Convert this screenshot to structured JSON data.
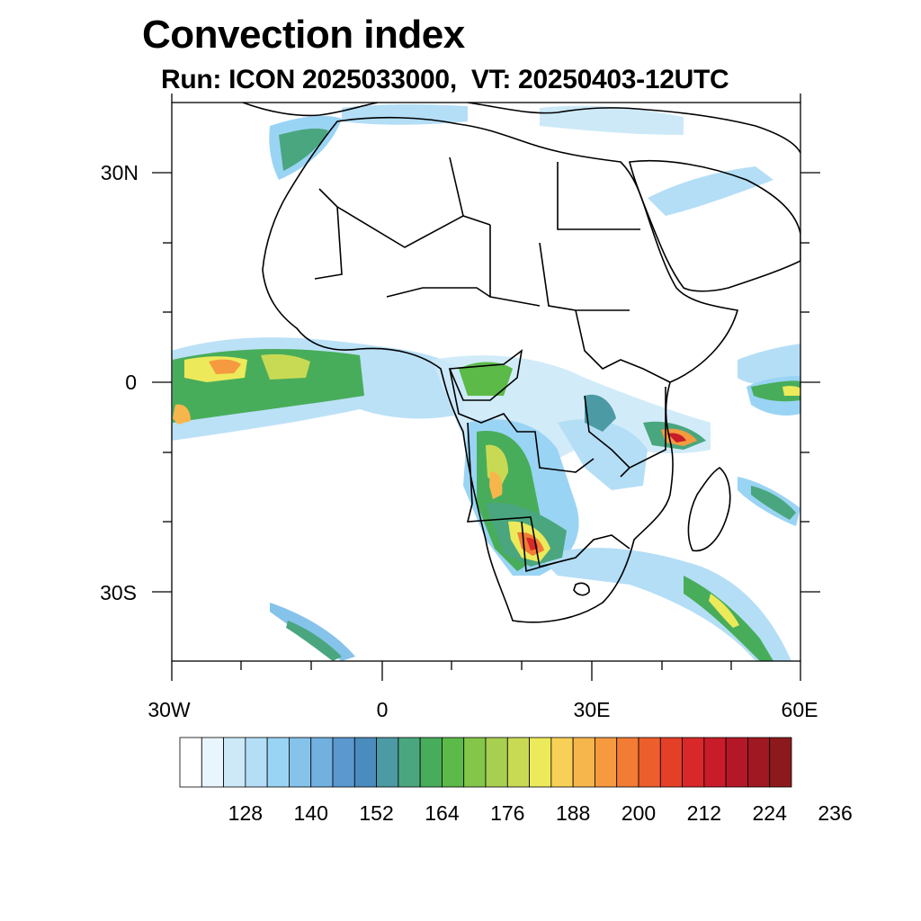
{
  "title": "Convection index",
  "subtitle": "Run: ICON 2025033000,  VT: 20250403-12UTC",
  "map": {
    "region": "Africa",
    "lon_range": [
      -30,
      60
    ],
    "lat_range": [
      -40,
      40
    ],
    "lon_ticks": [
      {
        "value": -30,
        "label": "30W"
      },
      {
        "value": 0,
        "label": "0"
      },
      {
        "value": 30,
        "label": "30E"
      },
      {
        "value": 60,
        "label": "60E"
      }
    ],
    "lat_ticks": [
      {
        "value": 30,
        "label": "30N"
      },
      {
        "value": 0,
        "label": "0"
      },
      {
        "value": -30,
        "label": "30S"
      }
    ]
  },
  "colorbar": {
    "colors": [
      "#ffffff",
      "#e8f5fc",
      "#cde9f8",
      "#b4def6",
      "#9ad4f4",
      "#86c3ea",
      "#72b0e0",
      "#5b98d0",
      "#4a8cbd",
      "#4c9aa4",
      "#4aa67e",
      "#48ad5a",
      "#5cba48",
      "#84c64a",
      "#a8d050",
      "#c8da54",
      "#ecea5a",
      "#f8d058",
      "#f6b64c",
      "#f69a40",
      "#f27c34",
      "#ec5e2c",
      "#e44028",
      "#d8282a",
      "#c81c2a",
      "#b41828",
      "#a01822",
      "#8c1a1c"
    ],
    "labels": [
      "128",
      "140",
      "152",
      "164",
      "176",
      "188",
      "200",
      "212",
      "224",
      "236"
    ]
  }
}
